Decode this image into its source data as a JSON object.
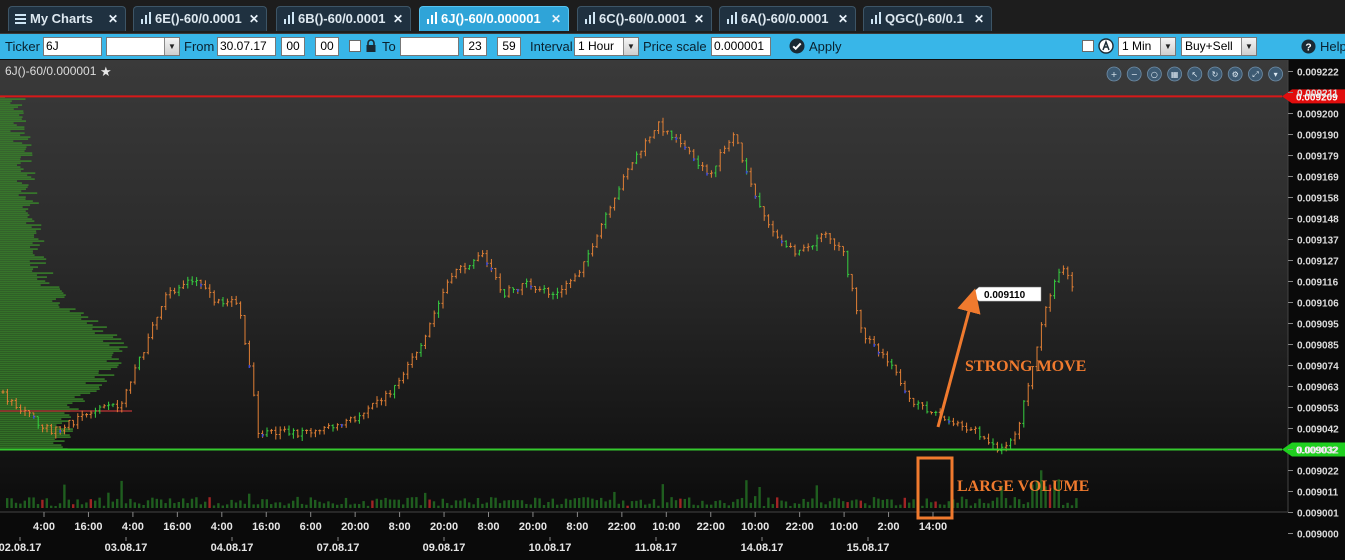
{
  "tabs": [
    {
      "label": "My Charts",
      "icon": "menu-icon",
      "active": false
    },
    {
      "label": "6E()-60/0.0001",
      "icon": "bar-chart-icon",
      "active": false
    },
    {
      "label": "6B()-60/0.0001",
      "icon": "bar-chart-icon",
      "active": false
    },
    {
      "label": "6J()-60/0.000001",
      "icon": "bar-chart-icon",
      "active": true
    },
    {
      "label": "6C()-60/0.0001",
      "icon": "bar-chart-icon",
      "active": false
    },
    {
      "label": "6A()-60/0.0001",
      "icon": "bar-chart-icon",
      "active": false
    },
    {
      "label": "QGC()-60/0.1",
      "icon": "bar-chart-icon",
      "active": false
    }
  ],
  "toolbar": {
    "ticker_label": "Ticker",
    "ticker_value": "6J",
    "ticker_select_value": "",
    "from_label": "From",
    "from_date": "30.07.17",
    "from_hour": "00",
    "from_minute": "00",
    "to_label": "To",
    "to_date": "",
    "to_hour": "23",
    "to_minute": "59",
    "interval_label": "Interval",
    "interval_value": "1 Hour",
    "price_scale_label": "Price scale",
    "price_scale_value": "0.000001",
    "apply_label": "Apply",
    "agg_value": "1 Min",
    "side_value": "Buy+Sell",
    "help_label": "Help"
  },
  "chart_title": "6J()-60/0.000001",
  "chart_tool_icons": [
    "zoom-in-icon",
    "zoom-out-icon",
    "zoom-reset-icon",
    "grid-icon",
    "cursor-icon",
    "refresh-icon",
    "settings-icon",
    "fullscreen-icon",
    "collapse-icon"
  ],
  "annotations": {
    "strong_move": "STRONG MOVE",
    "large_volume": "LARGE VOLUME",
    "annotation_color": "#f07a2e"
  },
  "colors": {
    "up_bar": "#e07f35",
    "down_bar": "#36d040",
    "resistance_line": "#d81818",
    "support_line": "#35c92e",
    "volume_bar": "#1f5e1f",
    "volume_profile": "#3a8a2a"
  },
  "chart_data": {
    "type": "candlestick",
    "title": "",
    "y_axis_ticks": [
      "0.009222",
      "0.009211",
      "0.009200",
      "0.009190",
      "0.009179",
      "0.009169",
      "0.009158",
      "0.009148",
      "0.009137",
      "0.009127",
      "0.009116",
      "0.009106",
      "0.009095",
      "0.009085",
      "0.009074",
      "0.009063",
      "0.009053",
      "0.009042",
      "0.009032",
      "0.009022",
      "0.009011",
      "0.009001",
      "0.009000"
    ],
    "ylim": [
      0.009,
      0.009222
    ],
    "x_axis_time_labels": [
      "4:00",
      "16:00",
      "4:00",
      "16:00",
      "4:00",
      "16:00",
      "6:00",
      "20:00",
      "8:00",
      "20:00",
      "8:00",
      "20:00",
      "8:00",
      "22:00",
      "10:00",
      "22:00",
      "10:00",
      "22:00",
      "10:00",
      "2:00",
      "14:00"
    ],
    "x_axis_date_labels": [
      "02.08.17",
      "03.08.17",
      "04.08.17",
      "07.08.17",
      "09.08.17",
      "10.08.17",
      "11.08.17",
      "14.08.17",
      "15.08.17"
    ],
    "resistance_level": {
      "label": "0.009209",
      "value": 0.009209
    },
    "support_level": {
      "label": "0.009032",
      "value": 0.009032
    },
    "last_price": {
      "label": "0.009110",
      "value": 0.00911
    },
    "price_path": [
      {
        "x": 0.0,
        "price": 0.00906
      },
      {
        "x": 0.04,
        "price": 0.00904
      },
      {
        "x": 0.07,
        "price": 0.00905
      },
      {
        "x": 0.095,
        "price": 0.009055
      },
      {
        "x": 0.11,
        "price": 0.00908
      },
      {
        "x": 0.13,
        "price": 0.00911
      },
      {
        "x": 0.148,
        "price": 0.009118
      },
      {
        "x": 0.165,
        "price": 0.009108
      },
      {
        "x": 0.185,
        "price": 0.009105
      },
      {
        "x": 0.195,
        "price": 0.00907
      },
      {
        "x": 0.2,
        "price": 0.00904
      },
      {
        "x": 0.24,
        "price": 0.00904
      },
      {
        "x": 0.28,
        "price": 0.009048
      },
      {
        "x": 0.31,
        "price": 0.009065
      },
      {
        "x": 0.33,
        "price": 0.00909
      },
      {
        "x": 0.35,
        "price": 0.00912
      },
      {
        "x": 0.375,
        "price": 0.00913
      },
      {
        "x": 0.39,
        "price": 0.00911
      },
      {
        "x": 0.41,
        "price": 0.009115
      },
      {
        "x": 0.43,
        "price": 0.00911
      },
      {
        "x": 0.45,
        "price": 0.00912
      },
      {
        "x": 0.47,
        "price": 0.00915
      },
      {
        "x": 0.49,
        "price": 0.009175
      },
      {
        "x": 0.51,
        "price": 0.009195
      },
      {
        "x": 0.53,
        "price": 0.009185
      },
      {
        "x": 0.55,
        "price": 0.00917
      },
      {
        "x": 0.57,
        "price": 0.00919
      },
      {
        "x": 0.585,
        "price": 0.00916
      },
      {
        "x": 0.6,
        "price": 0.00914
      },
      {
        "x": 0.62,
        "price": 0.00913
      },
      {
        "x": 0.64,
        "price": 0.00914
      },
      {
        "x": 0.655,
        "price": 0.00913
      },
      {
        "x": 0.67,
        "price": 0.00909
      },
      {
        "x": 0.69,
        "price": 0.009075
      },
      {
        "x": 0.71,
        "price": 0.009055
      },
      {
        "x": 0.73,
        "price": 0.009048
      },
      {
        "x": 0.76,
        "price": 0.00904
      },
      {
        "x": 0.775,
        "price": 0.009032
      },
      {
        "x": 0.79,
        "price": 0.00904
      },
      {
        "x": 0.8,
        "price": 0.00907
      },
      {
        "x": 0.81,
        "price": 0.0091
      },
      {
        "x": 0.825,
        "price": 0.009125
      },
      {
        "x": 0.835,
        "price": 0.00911
      }
    ],
    "volume_highlight_x": 0.81
  }
}
